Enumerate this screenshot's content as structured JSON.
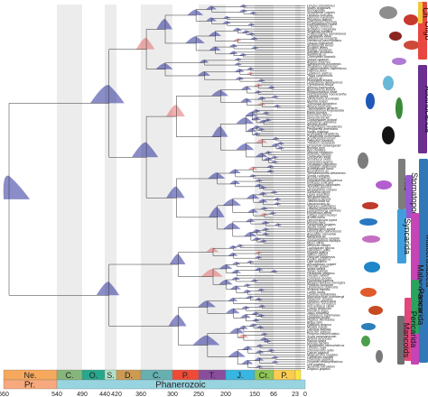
{
  "taxa": [
    "Limulus polyphemus",
    "Ixodes scapularis",
    "Pycnogonida",
    "Symphylella vulgaris",
    "Lithobius forficatus",
    "Glomeris marginata",
    "Polyxenus lagurus",
    "Peripatopsis capensis",
    "Euperipatoides rowelli",
    "Cryptops hortensis",
    "Scutigera coleoptrata",
    "Strigamia maritima",
    "Craterostigmus tasmanianus",
    "Cypridopsis vidua",
    "Notodromas monacha",
    "Harbansus paucichelatus",
    "Vargula hilgendorfii",
    "Skogsbergia lerneri",
    "Eucypris virens",
    "Argulus siamensis",
    "Armillifer armillatus",
    "Raillietiella sp.",
    "Chonopeltis australis",
    "Dolops ranarum",
    "Argulus foliaceus",
    "Speleonectes tulumensis",
    "Xibalbanus tulumensis",
    "Cryptocorynetes haptodiscus",
    "Daphnia pulex",
    "Lepidurus arcticus",
    "Triops cancriformis",
    "Lynceus sp.",
    "Eulimnadia texana",
    "Leptestheria dahalacensis",
    "Cyclestheria hislopi",
    "Artemia franciscana",
    "Branchinecta lindahli",
    "Streptocephalus sealii",
    "Hutchinsoniella macracantha",
    "Lightiella incisa",
    "Sandersiella acuminata",
    "Machilis hrabei",
    "Thermobia domestica",
    "Atelura formicaria",
    "Tricholepidion gertschi",
    "Ctenolepisma longicaudata",
    "Baetis pumilus",
    "Ephemera danica",
    "Isonychia bicolor",
    "Cordulegaster boltonii",
    "Calopteryx splendens",
    "Aeshna juncea",
    "Zootermopsis nevadensis",
    "Periplaneta americana",
    "Mantis religiosa",
    "Grylloblatta bifratrilecta",
    "Frankliniella occidentalis",
    "Acyrthosiphon pisum",
    "Pediculus humanus",
    "Tribolium castaneum",
    "Drosophila melanogaster",
    "Bombyx mori",
    "Apis mellifera",
    "Nasonia vitripennis",
    "Folsomia candida",
    "Orchesella cincta",
    "Sminthurus viridis",
    "Campodea augens",
    "Occasjapyx japonicus",
    "Catajapyx aquilonaris",
    "Acerentomon franzi",
    "Eosentomon sp.",
    "Tetrodontophora bielanensis",
    "Sinella curviseta",
    "Anurida maritima",
    "Holacanthella duospinosa",
    "Pollicipes pollicipes",
    "Semibalanus balanoides",
    "Tetraclita japonica",
    "Megabalanus volcano",
    "Sacculina carcini",
    "Lepas anserifera",
    "Ibla quadrivalvis",
    "Trypetesa lampas",
    "Tantulocarida sp.",
    "Hansenocaris sp.",
    "Tigriopus californicus",
    "Calanus finmarchicus",
    "Lepeophtheirus salmonis",
    "Eurytemora affinis",
    "Caligus rogercresseyi",
    "Acartia tonsa",
    "Derocheilocaris typica",
    "Nebalia bipes",
    "Paranebalia longipes",
    "Squilla mantis",
    "Gonodactylus smithii",
    "Hemisquilla californiensis",
    "Anaspides tasmaniae",
    "Bathynella sp.",
    "Thermosbaena mirabilis",
    "Spelaeogriphus lepidops",
    "Mysis relicta",
    "Neomysis integer",
    "Lophogaster typicus",
    "Gammarus pulex",
    "Hyalella azteca",
    "Talitrus saltator",
    "Parhyale hawaiensis",
    "Asellus aquaticus",
    "Ligia oceanica",
    "Armadillidium vulgare",
    "Porcellio scaber",
    "Idotea baltica",
    "Tanais dulongii",
    "Paratanais malignus",
    "Diastylis rathkei",
    "Cumopsis goodsir",
    "Euphausia superba",
    "Meganyctiphanes norvegica",
    "Penaeus vannamei",
    "Litopenaeus stylirostris",
    "Sicyonia ingentis",
    "Lucifer faxoni",
    "Caridina multidentata",
    "Macrobrachium rosenbergii",
    "Palaemon serratus",
    "Homarus americanus",
    "Nephrops norvegicus",
    "Procambarus clarkii",
    "Cherax destructor",
    "Panulirus argus",
    "Jasus edwardsii",
    "Callianassa subterranea",
    "Upogebia pusilla",
    "Pagurus bernhardus",
    "Birgus latro",
    "Galathea strigosa",
    "Munida rugosa",
    "Carcinus maenas",
    "Eriocheir sinensis",
    "Portunus trituberculatus",
    "Scylla paramamosain",
    "Dromia personata",
    "Ranina ranina",
    "Homola barbata",
    "Paralithodes camtschaticus",
    "Lithodes maja",
    "Chionoecetes opilio",
    "Cancer pagurus",
    "Metacarcinus magister",
    "Callinectes sapidus",
    "Charybdis japonica",
    "Ocypode ceratophthalmus",
    "Uca pugilator",
    "Sesarma reticulatum",
    "Grapsus grapsus"
  ],
  "timescale": {
    "periods": [
      {
        "label": "Ne.",
        "color": "#f6a85c"
      },
      {
        "label": "C.",
        "color": "#86b57a"
      },
      {
        "label": "O.",
        "color": "#27a78b"
      },
      {
        "label": "S.",
        "color": "#b3e1c7"
      },
      {
        "label": "D.",
        "color": "#cc9b52"
      },
      {
        "label": "C.",
        "color": "#67afb0"
      },
      {
        "label": "P.",
        "color": "#ee4a36"
      },
      {
        "label": "T.",
        "color": "#8a4d9c"
      },
      {
        "label": "J.",
        "color": "#37b6e1"
      },
      {
        "label": "Cr.",
        "color": "#8dc657"
      },
      {
        "label": "P.",
        "color": "#fbcc4f"
      },
      {
        "label": "",
        "color": "#fee73a"
      }
    ],
    "eons": [
      {
        "label": "Pr.",
        "color": "#f7a87c"
      },
      {
        "label": "Phanerozoic",
        "color": "#98d4e0"
      }
    ],
    "ticks": [
      "660",
      "540",
      "490",
      "440",
      "420",
      "360",
      "300",
      "250",
      "200",
      "150",
      "66",
      "23",
      "0"
    ]
  },
  "clades": [
    {
      "label": "Oligo",
      "color": "#e8483f"
    },
    {
      "label": "Ch",
      "color": "#f0c93b"
    },
    {
      "label": "Allotriocarida",
      "color": "#6a2f8f"
    },
    {
      "label": "The",
      "color": "#7d7d7d"
    },
    {
      "label": "Stomatopoda",
      "color": "#9657d1"
    },
    {
      "label": "Syncarida",
      "color": "#3f9edb"
    },
    {
      "label": "Multicrustacea",
      "color": "#3278b6"
    },
    {
      "label": "Malacostraca",
      "color": "#c644b5"
    },
    {
      "label": "Pancarida",
      "color": "#2ca25f"
    },
    {
      "label": "Pericarida",
      "color": "#e1477a"
    },
    {
      "label": "Mancoids",
      "color": "#6f6f6f"
    }
  ],
  "style": {
    "density_fill": "#2c2f9a",
    "highlight_fill": "#e26060"
  }
}
